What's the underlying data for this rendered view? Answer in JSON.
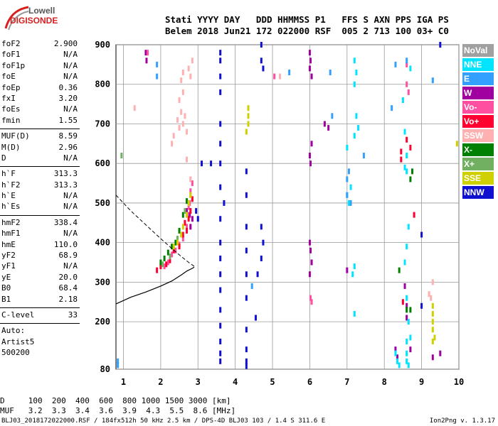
{
  "logo": {
    "line1": "Lowell",
    "line2": "DIGISONDE"
  },
  "header": {
    "line1": "Stati YYYY DAY   DDD HHMMSS P1   FFS S AXN PPS IGA PS",
    "line2": "Belem 2018 Jun21 172 022000 RSF  005 2 713 100 03+ C0"
  },
  "params": {
    "g1": [
      [
        "foF2",
        "2.900"
      ],
      [
        "foF1",
        "N/A"
      ],
      [
        "foF1p",
        "N/A"
      ],
      [
        "foE",
        "N/A"
      ],
      [
        "foEp",
        "0.36"
      ],
      [
        "fxI",
        "3.20"
      ],
      [
        "foEs",
        "N/A"
      ],
      [
        "fmin",
        "1.55"
      ]
    ],
    "g2": [
      [
        "MUF(D)",
        "8.59"
      ],
      [
        "M(D)",
        "2.96"
      ],
      [
        "D",
        "N/A"
      ]
    ],
    "g3": [
      [
        "h`F",
        "313.3"
      ],
      [
        "h`F2",
        "313.3"
      ],
      [
        "h`E",
        "N/A"
      ],
      [
        "h`Es",
        "N/A"
      ]
    ],
    "g4": [
      [
        "hmF2",
        "338.4"
      ],
      [
        "hmF1",
        "N/A"
      ],
      [
        "hmE",
        "110.0"
      ],
      [
        "yF2",
        "68.9"
      ],
      [
        "yF1",
        "N/A"
      ],
      [
        "yE",
        "20.0"
      ],
      [
        "B0",
        "68.4"
      ],
      [
        "B1",
        "2.18"
      ]
    ],
    "g5": [
      [
        "C-level",
        "33"
      ]
    ],
    "auto": [
      "Auto:",
      "Artist5",
      "500200"
    ]
  },
  "legend": [
    {
      "label": "NoVal",
      "color": "#a0a0a0"
    },
    {
      "label": "NNE",
      "color": "#00e5ff"
    },
    {
      "label": "E",
      "color": "#33a0ff"
    },
    {
      "label": "W",
      "color": "#a000a0"
    },
    {
      "label": "Vo-",
      "color": "#ff4fa0"
    },
    {
      "label": "Vo+",
      "color": "#ff0030"
    },
    {
      "label": "SSW",
      "color": "#ffb0b0"
    },
    {
      "label": "X-",
      "color": "#008000"
    },
    {
      "label": "X+",
      "color": "#70b060"
    },
    {
      "label": "SSE",
      "color": "#d0d000"
    },
    {
      "label": "NNW",
      "color": "#1010d0"
    }
  ],
  "footer": {
    "line1": "D     100  200  400  600  800 1000 1500 3000 [km]",
    "line2": "MUF   3.2  3.3  3.4  3.6  3.9  4.3  5.5  8.6 [MHz]",
    "file": "BLJ03_2018172022000.RSF / 184fx512h 50 kHz 2.5 km / DPS-4D BLJ03 103 / 1.4 S 311.6 E",
    "version": "Ion2Png v. 1.3.17"
  },
  "chart_data": {
    "type": "scatter",
    "xlim": [
      0.8,
      10
    ],
    "ylim": [
      80,
      900
    ],
    "xticks": [
      1,
      2,
      3,
      4,
      5,
      6,
      7,
      8,
      9,
      10
    ],
    "yticks": [
      80,
      200,
      300,
      400,
      500,
      600,
      700,
      800,
      900
    ],
    "grid": true,
    "series": [
      {
        "name": "W",
        "color": "#a000a0",
        "points": [
          [
            1.6,
            880
          ],
          [
            1.62,
            860
          ],
          [
            2.7,
            480
          ],
          [
            2.78,
            470
          ],
          [
            2.8,
            440
          ],
          [
            2.85,
            460
          ],
          [
            6.0,
            880
          ],
          [
            6.02,
            860
          ],
          [
            6.0,
            840
          ],
          [
            6.05,
            820
          ],
          [
            6.0,
            620
          ],
          [
            6.02,
            600
          ],
          [
            6.05,
            650
          ],
          [
            6.0,
            400
          ],
          [
            6.02,
            380
          ],
          [
            6.05,
            350
          ],
          [
            6.0,
            320
          ],
          [
            6.4,
            700
          ],
          [
            6.5,
            690
          ],
          [
            7.0,
            330
          ],
          [
            8.55,
            290
          ],
          [
            8.6,
            240
          ],
          [
            8.6,
            210
          ],
          [
            8.7,
            130
          ],
          [
            9.3,
            110
          ],
          [
            9.5,
            120
          ],
          [
            8.35,
            110
          ],
          [
            8.3,
            130
          ]
        ]
      },
      {
        "name": "NNW",
        "color": "#1010d0",
        "points": [
          [
            3.6,
            880
          ],
          [
            3.6,
            860
          ],
          [
            3.6,
            820
          ],
          [
            3.6,
            780
          ],
          [
            3.6,
            700
          ],
          [
            3.6,
            650
          ],
          [
            3.6,
            600
          ],
          [
            3.6,
            540
          ],
          [
            3.6,
            460
          ],
          [
            3.6,
            400
          ],
          [
            3.6,
            360
          ],
          [
            3.6,
            320
          ],
          [
            3.6,
            280
          ],
          [
            3.6,
            230
          ],
          [
            3.6,
            190
          ],
          [
            3.6,
            150
          ],
          [
            3.6,
            120
          ],
          [
            3.6,
            100
          ],
          [
            4.3,
            580
          ],
          [
            4.3,
            520
          ],
          [
            4.3,
            440
          ],
          [
            4.3,
            380
          ],
          [
            4.3,
            320
          ],
          [
            4.3,
            260
          ],
          [
            4.3,
            180
          ],
          [
            4.3,
            130
          ],
          [
            4.3,
            100
          ],
          [
            4.3,
            88
          ],
          [
            4.7,
            900
          ],
          [
            4.7,
            860
          ],
          [
            4.75,
            840
          ],
          [
            4.7,
            440
          ],
          [
            4.75,
            400
          ],
          [
            4.7,
            360
          ],
          [
            3.1,
            600
          ],
          [
            3.35,
            600
          ],
          [
            3.7,
            500
          ],
          [
            2.95,
            480
          ],
          [
            3.0,
            460
          ],
          [
            4.6,
            320
          ],
          [
            4.55,
            210
          ],
          [
            9.0,
            420
          ],
          [
            9.0,
            240
          ],
          [
            9.5,
            900
          ]
        ]
      },
      {
        "name": "Vo-",
        "color": "#ff4fa0",
        "points": [
          [
            2.5,
            395
          ],
          [
            2.6,
            410
          ],
          [
            2.7,
            440
          ],
          [
            2.72,
            470
          ],
          [
            2.75,
            490
          ],
          [
            2.78,
            500
          ],
          [
            2.8,
            530
          ],
          [
            2.85,
            550
          ],
          [
            2.3,
            370
          ],
          [
            2.2,
            350
          ],
          [
            2.1,
            340
          ],
          [
            2.4,
            380
          ],
          [
            1.65,
            880
          ],
          [
            6.02,
            260
          ],
          [
            6.05,
            250
          ],
          [
            8.6,
            850
          ],
          [
            8.6,
            800
          ],
          [
            8.65,
            780
          ],
          [
            5.05,
            820
          ]
        ]
      },
      {
        "name": "Vo+",
        "color": "#ff0030",
        "points": [
          [
            2.5,
            390
          ],
          [
            2.6,
            420
          ],
          [
            2.65,
            450
          ],
          [
            2.7,
            430
          ],
          [
            2.75,
            460
          ],
          [
            2.8,
            480
          ],
          [
            2.85,
            510
          ],
          [
            2.35,
            380
          ],
          [
            2.25,
            355
          ],
          [
            2.15,
            345
          ],
          [
            2.0,
            340
          ],
          [
            1.9,
            330
          ],
          [
            8.45,
            630
          ],
          [
            8.45,
            610
          ],
          [
            8.7,
            640
          ],
          [
            8.6,
            660
          ],
          [
            8.8,
            470
          ],
          [
            8.5,
            250
          ]
        ]
      },
      {
        "name": "SSW",
        "color": "#ffb0b0",
        "points": [
          [
            2.5,
            760
          ],
          [
            2.6,
            780
          ],
          [
            2.55,
            730
          ],
          [
            2.45,
            710
          ],
          [
            2.5,
            690
          ],
          [
            2.6,
            700
          ],
          [
            2.7,
            680
          ],
          [
            2.65,
            720
          ],
          [
            2.3,
            650
          ],
          [
            2.35,
            670
          ],
          [
            2.55,
            810
          ],
          [
            2.6,
            830
          ],
          [
            2.75,
            840
          ],
          [
            2.8,
            820
          ],
          [
            2.85,
            860
          ],
          [
            2.7,
            610
          ],
          [
            2.8,
            560
          ],
          [
            1.3,
            740
          ],
          [
            2.75,
            500
          ],
          [
            2.8,
            520
          ],
          [
            5.2,
            820
          ],
          [
            9.2,
            270
          ],
          [
            9.25,
            260
          ],
          [
            9.3,
            300
          ]
        ]
      },
      {
        "name": "NNE",
        "color": "#00e5ff",
        "points": [
          [
            7.2,
            860
          ],
          [
            7.25,
            830
          ],
          [
            7.2,
            800
          ],
          [
            7.25,
            720
          ],
          [
            7.3,
            690
          ],
          [
            7.2,
            670
          ],
          [
            7.0,
            640
          ],
          [
            7.1,
            540
          ],
          [
            7.0,
            520
          ],
          [
            7.05,
            500
          ],
          [
            7.2,
            340
          ],
          [
            7.15,
            320
          ],
          [
            7.2,
            220
          ],
          [
            8.55,
            680
          ],
          [
            8.6,
            620
          ],
          [
            8.55,
            590
          ],
          [
            8.6,
            580
          ],
          [
            8.65,
            440
          ],
          [
            8.6,
            390
          ],
          [
            8.55,
            350
          ],
          [
            8.6,
            260
          ],
          [
            8.65,
            200
          ],
          [
            8.7,
            160
          ],
          [
            8.6,
            150
          ],
          [
            8.6,
            120
          ],
          [
            8.6,
            100
          ],
          [
            8.65,
            90
          ],
          [
            8.3,
            120
          ],
          [
            8.35,
            100
          ],
          [
            8.4,
            90
          ],
          [
            8.7,
            840
          ],
          [
            8.5,
            760
          ]
        ]
      },
      {
        "name": "E",
        "color": "#33a0ff",
        "points": [
          [
            0.85,
            100
          ],
          [
            0.85,
            90
          ],
          [
            1.9,
            820
          ],
          [
            1.9,
            850
          ],
          [
            5.45,
            830
          ],
          [
            6.55,
            830
          ],
          [
            6.6,
            720
          ],
          [
            7.0,
            520
          ],
          [
            7.0,
            560
          ],
          [
            7.05,
            580
          ],
          [
            7.1,
            500
          ],
          [
            7.45,
            620
          ],
          [
            8.2,
            740
          ],
          [
            8.3,
            850
          ],
          [
            8.6,
            860
          ],
          [
            9.3,
            810
          ],
          [
            4.45,
            290
          ]
        ]
      },
      {
        "name": "X-",
        "color": "#008000",
        "points": [
          [
            2.0,
            350
          ],
          [
            2.1,
            360
          ],
          [
            2.2,
            375
          ],
          [
            2.3,
            390
          ],
          [
            2.4,
            400
          ],
          [
            2.5,
            430
          ],
          [
            2.6,
            470
          ],
          [
            2.7,
            505
          ],
          [
            8.75,
            580
          ],
          [
            8.7,
            560
          ],
          [
            8.4,
            330
          ],
          [
            8.7,
            230
          ],
          [
            8.6,
            230
          ]
        ]
      },
      {
        "name": "X+",
        "color": "#70b060",
        "points": [
          [
            2.05,
            345
          ],
          [
            2.25,
            365
          ],
          [
            2.45,
            410
          ],
          [
            2.65,
            480
          ],
          [
            0.95,
            620
          ]
        ]
      },
      {
        "name": "SSE",
        "color": "#d0d000",
        "points": [
          [
            2.6,
            440
          ],
          [
            2.7,
            470
          ],
          [
            2.75,
            500
          ],
          [
            2.8,
            520
          ],
          [
            2.55,
            420
          ],
          [
            2.45,
            400
          ],
          [
            2.35,
            390
          ],
          [
            4.35,
            740
          ],
          [
            4.35,
            720
          ],
          [
            4.35,
            700
          ],
          [
            4.3,
            680
          ],
          [
            9.3,
            240
          ],
          [
            9.3,
            220
          ],
          [
            9.3,
            200
          ],
          [
            9.3,
            180
          ],
          [
            9.35,
            160
          ],
          [
            9.3,
            150
          ],
          [
            9.95,
            650
          ]
        ]
      }
    ]
  }
}
